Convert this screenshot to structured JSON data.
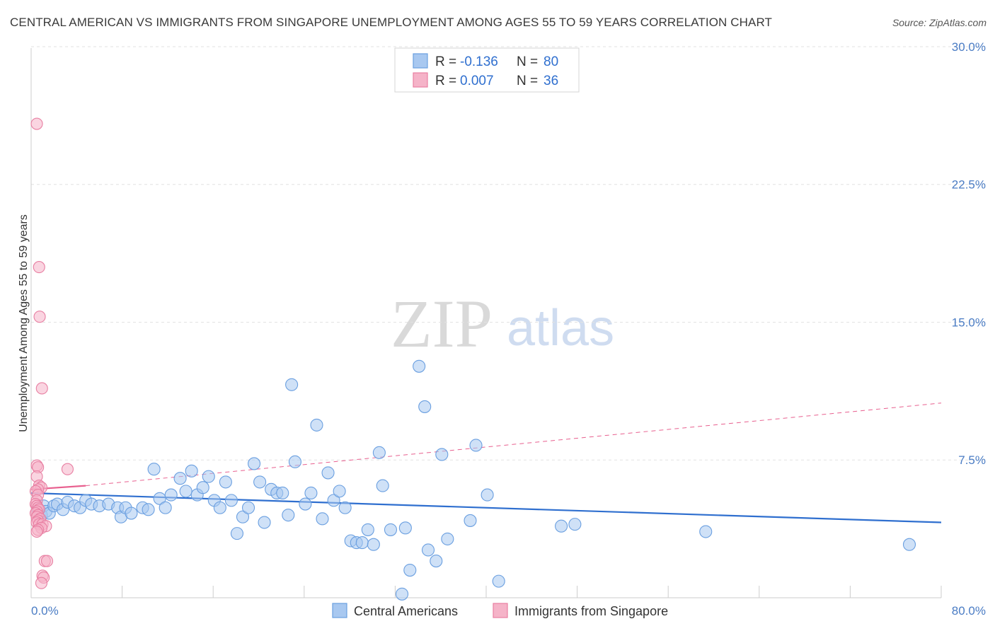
{
  "title": "CENTRAL AMERICAN VS IMMIGRANTS FROM SINGAPORE UNEMPLOYMENT AMONG AGES 55 TO 59 YEARS CORRELATION CHART",
  "source": "Source: ZipAtlas.com",
  "watermark": {
    "zip": "ZIP",
    "atlas": "atlas"
  },
  "colors": {
    "blue_fill": "#a8c8f0",
    "blue_stroke": "#6a9fe0",
    "blue_line": "#2f6fcf",
    "pink_fill": "#f5b3c8",
    "pink_stroke": "#e87fa2",
    "pink_line": "#e8608f",
    "grid": "#e2e2e2",
    "tick_label": "#4a7cc4"
  },
  "legend": {
    "r_label": "R =",
    "n_label": "N =",
    "entries": [
      {
        "r": "-0.136",
        "n": "80"
      },
      {
        "r": "0.007",
        "n": "36"
      }
    ]
  },
  "chart_data": {
    "type": "scatter",
    "title": "CENTRAL AMERICAN VS IMMIGRANTS FROM SINGAPORE UNEMPLOYMENT AMONG AGES 55 TO 59 YEARS CORRELATION CHART",
    "xlabel": "",
    "ylabel": "Unemployment Among Ages 55 to 59 years",
    "xlim": [
      0,
      80
    ],
    "ylim": [
      0,
      31
    ],
    "x_tick_labels": [
      "0.0%",
      "80.0%"
    ],
    "y_ticks": [
      {
        "value": 30,
        "label": "30.0%"
      },
      {
        "value": 22.5,
        "label": "22.5%"
      },
      {
        "value": 15,
        "label": "15.0%"
      },
      {
        "value": 7.5,
        "label": "7.5%"
      }
    ],
    "x_minor_ticks": [
      8,
      16,
      24,
      32,
      40,
      48,
      56,
      64,
      72,
      80
    ],
    "series": [
      {
        "name": "Central Americans",
        "color": "#a8c8f0",
        "points": [
          [
            0.6,
            4.8
          ],
          [
            0.9,
            4.5
          ],
          [
            1.1,
            5.0
          ],
          [
            1.3,
            4.7
          ],
          [
            1.6,
            4.6
          ],
          [
            2.0,
            5.0
          ],
          [
            2.3,
            5.1
          ],
          [
            2.8,
            4.8
          ],
          [
            3.2,
            5.2
          ],
          [
            3.8,
            5.0
          ],
          [
            4.3,
            4.9
          ],
          [
            4.8,
            5.3
          ],
          [
            5.3,
            5.1
          ],
          [
            6.0,
            5.0
          ],
          [
            6.8,
            5.1
          ],
          [
            7.6,
            4.9
          ],
          [
            7.9,
            4.4
          ],
          [
            8.3,
            4.9
          ],
          [
            8.8,
            4.6
          ],
          [
            9.8,
            4.9
          ],
          [
            10.3,
            4.8
          ],
          [
            10.8,
            7.0
          ],
          [
            11.3,
            5.4
          ],
          [
            11.8,
            4.9
          ],
          [
            12.3,
            5.6
          ],
          [
            13.1,
            6.5
          ],
          [
            13.6,
            5.8
          ],
          [
            14.1,
            6.9
          ],
          [
            14.6,
            5.6
          ],
          [
            15.1,
            6.0
          ],
          [
            15.6,
            6.6
          ],
          [
            16.1,
            5.3
          ],
          [
            16.6,
            4.9
          ],
          [
            17.1,
            6.3
          ],
          [
            17.6,
            5.3
          ],
          [
            18.1,
            3.5
          ],
          [
            18.6,
            4.4
          ],
          [
            19.1,
            4.9
          ],
          [
            19.6,
            7.3
          ],
          [
            20.1,
            6.3
          ],
          [
            20.5,
            4.1
          ],
          [
            21.1,
            5.9
          ],
          [
            21.6,
            5.7
          ],
          [
            22.1,
            5.7
          ],
          [
            22.6,
            4.5
          ],
          [
            22.9,
            11.6
          ],
          [
            23.2,
            7.4
          ],
          [
            24.1,
            5.1
          ],
          [
            24.6,
            5.7
          ],
          [
            25.1,
            9.4
          ],
          [
            25.6,
            4.3
          ],
          [
            26.1,
            6.8
          ],
          [
            26.6,
            5.3
          ],
          [
            27.1,
            5.8
          ],
          [
            27.6,
            4.9
          ],
          [
            28.1,
            3.1
          ],
          [
            28.6,
            3.0
          ],
          [
            29.1,
            3.0
          ],
          [
            29.6,
            3.7
          ],
          [
            30.1,
            2.9
          ],
          [
            30.6,
            7.9
          ],
          [
            30.9,
            6.1
          ],
          [
            31.6,
            3.7
          ],
          [
            32.6,
            0.2
          ],
          [
            32.9,
            3.8
          ],
          [
            33.3,
            1.5
          ],
          [
            34.1,
            12.6
          ],
          [
            34.6,
            10.4
          ],
          [
            34.9,
            2.6
          ],
          [
            35.6,
            2.0
          ],
          [
            36.1,
            7.8
          ],
          [
            36.6,
            3.2
          ],
          [
            38.6,
            4.2
          ],
          [
            39.1,
            8.3
          ],
          [
            40.1,
            5.6
          ],
          [
            41.1,
            0.9
          ],
          [
            46.6,
            3.9
          ],
          [
            47.8,
            4.0
          ],
          [
            59.3,
            3.6
          ],
          [
            77.2,
            2.9
          ]
        ]
      },
      {
        "name": "Immigrants from Singapore",
        "color": "#f5b3c8",
        "points": [
          [
            0.5,
            25.8
          ],
          [
            0.7,
            18.0
          ],
          [
            0.75,
            15.3
          ],
          [
            0.95,
            11.4
          ],
          [
            3.2,
            7.0
          ],
          [
            0.5,
            7.2
          ],
          [
            0.6,
            7.1
          ],
          [
            0.5,
            6.6
          ],
          [
            0.7,
            6.1
          ],
          [
            0.9,
            6.0
          ],
          [
            0.6,
            5.9
          ],
          [
            0.4,
            5.8
          ],
          [
            0.6,
            5.6
          ],
          [
            0.5,
            5.3
          ],
          [
            0.4,
            5.1
          ],
          [
            0.5,
            5.0
          ],
          [
            0.6,
            4.9
          ],
          [
            0.7,
            4.8
          ],
          [
            0.5,
            4.7
          ],
          [
            0.4,
            4.6
          ],
          [
            0.6,
            4.5
          ],
          [
            0.5,
            4.4
          ],
          [
            0.8,
            4.3
          ],
          [
            0.6,
            4.2
          ],
          [
            0.5,
            4.1
          ],
          [
            0.7,
            4.0
          ],
          [
            1.0,
            4.0
          ],
          [
            1.3,
            3.9
          ],
          [
            0.9,
            3.8
          ],
          [
            0.6,
            3.7
          ],
          [
            0.5,
            3.6
          ],
          [
            1.2,
            2.0
          ],
          [
            1.4,
            2.0
          ],
          [
            1.0,
            1.2
          ],
          [
            1.1,
            1.1
          ],
          [
            0.9,
            0.8
          ]
        ]
      }
    ],
    "trend_lines": [
      {
        "series": "Central Americans",
        "style": "solid",
        "x": [
          0,
          80
        ],
        "y": [
          5.7,
          4.1
        ]
      },
      {
        "series": "Immigrants from Singapore",
        "style": "solid",
        "x": [
          0,
          4.8
        ],
        "y": [
          5.9,
          6.1
        ]
      },
      {
        "series": "Immigrants from Singapore",
        "style": "dashed",
        "x": [
          4.8,
          80
        ],
        "y": [
          6.1,
          10.6
        ]
      }
    ]
  }
}
